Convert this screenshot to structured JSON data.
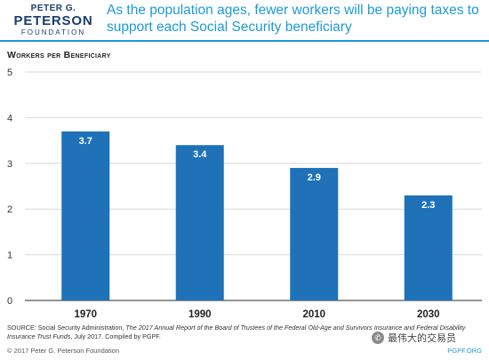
{
  "header": {
    "logo": {
      "line1": "PETER G.",
      "line2": "PETERSON",
      "line3": "FOUNDATION"
    },
    "headline": "As the population ages, fewer workers will be paying taxes to support each Social Security beneficiary"
  },
  "footer": {
    "source_prefix": "SOURCE: Social Security Administration, ",
    "source_italic": "The 2017 Annual Report of the Board of Trustees of the Federal Old-Age and Survivors Insurance and Federal Disability Insurance Trust Funds",
    "source_suffix": ", July 2017. Compiled by PGPF.",
    "copyright": "© 2017 Peter G. Peterson Foundation",
    "site": "PGPF.ORG"
  },
  "watermark": {
    "text": "最伟大的交易员",
    "icon": "wechat-icon"
  },
  "colors": {
    "bar": "#1f72b8",
    "headline": "#1d9ad6",
    "grid": "#d9d9d9",
    "axis": "#555555",
    "label": "#ffffff"
  },
  "chart_data": {
    "type": "bar",
    "title": "",
    "ylabel": "Workers per Beneficiary",
    "xlabel": "",
    "categories": [
      "1970",
      "1990",
      "2010",
      "2030"
    ],
    "values": [
      3.7,
      3.4,
      2.9,
      2.3
    ],
    "value_labels": [
      "3.7",
      "3.4",
      "2.9",
      "2.3"
    ],
    "ylim": [
      0,
      5
    ],
    "yticks": [
      0,
      1,
      2,
      3,
      4,
      5
    ],
    "grid": true,
    "legend": "none"
  }
}
